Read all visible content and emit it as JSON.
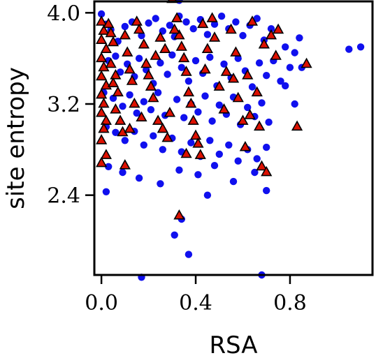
{
  "chart_data": {
    "type": "scatter",
    "xlabel": "RSA",
    "ylabel": "site entropy",
    "xlim": [
      -0.03,
      1.15
    ],
    "ylim": [
      1.7,
      4.1
    ],
    "x_ticks": [
      0.0,
      0.4,
      0.8
    ],
    "x_tick_labels": [
      "0.0",
      "0.4",
      "0.8"
    ],
    "y_ticks": [
      2.4,
      3.2,
      4.0
    ],
    "y_tick_labels": [
      "2.4",
      "3.2",
      "4.0"
    ],
    "grid": false,
    "legend": "none",
    "series": [
      {
        "marker": "circle",
        "color": "#1010ee",
        "points": [
          [
            0.0,
            3.99
          ],
          [
            0.02,
            3.9
          ],
          [
            0.04,
            3.85
          ],
          [
            0.07,
            3.75
          ],
          [
            0.1,
            3.88
          ],
          [
            0.13,
            3.92
          ],
          [
            0.17,
            3.8
          ],
          [
            0.2,
            3.91
          ],
          [
            0.23,
            3.95
          ],
          [
            0.26,
            3.84
          ],
          [
            0.29,
            3.89
          ],
          [
            0.31,
            3.79
          ],
          [
            0.33,
            3.97
          ],
          [
            0.36,
            3.92
          ],
          [
            0.39,
            3.86
          ],
          [
            0.42,
            3.94
          ],
          [
            0.45,
            3.81
          ],
          [
            0.48,
            3.9
          ],
          [
            0.51,
            3.97
          ],
          [
            0.54,
            3.86
          ],
          [
            0.57,
            3.92
          ],
          [
            0.6,
            3.8
          ],
          [
            0.63,
            3.89
          ],
          [
            0.66,
            3.95
          ],
          [
            0.69,
            3.76
          ],
          [
            0.72,
            3.86
          ],
          [
            0.78,
            3.7
          ],
          [
            0.82,
            3.65
          ],
          [
            0.84,
            3.78
          ],
          [
            0.33,
            4.11
          ],
          [
            0.03,
            3.58
          ],
          [
            0.06,
            3.62
          ],
          [
            0.08,
            3.48
          ],
          [
            0.11,
            3.55
          ],
          [
            0.14,
            3.44
          ],
          [
            0.16,
            3.6
          ],
          [
            0.19,
            3.5
          ],
          [
            0.22,
            3.38
          ],
          [
            0.25,
            3.56
          ],
          [
            0.28,
            3.46
          ],
          [
            0.3,
            3.63
          ],
          [
            0.34,
            3.52
          ],
          [
            0.37,
            3.4
          ],
          [
            0.4,
            3.58
          ],
          [
            0.43,
            3.47
          ],
          [
            0.46,
            3.61
          ],
          [
            0.49,
            3.36
          ],
          [
            0.52,
            3.55
          ],
          [
            0.55,
            3.43
          ],
          [
            0.58,
            3.6
          ],
          [
            0.61,
            3.49
          ],
          [
            0.64,
            3.35
          ],
          [
            0.67,
            3.56
          ],
          [
            0.7,
            3.45
          ],
          [
            0.73,
            3.58
          ],
          [
            0.76,
            3.4
          ],
          [
            0.8,
            3.52
          ],
          [
            0.01,
            3.3
          ],
          [
            0.05,
            3.25
          ],
          [
            0.09,
            3.18
          ],
          [
            0.12,
            3.28
          ],
          [
            0.15,
            3.12
          ],
          [
            0.18,
            3.22
          ],
          [
            0.21,
            3.15
          ],
          [
            0.24,
            3.3
          ],
          [
            0.27,
            3.1
          ],
          [
            0.32,
            3.24
          ],
          [
            0.35,
            3.08
          ],
          [
            0.38,
            3.2
          ],
          [
            0.41,
            3.13
          ],
          [
            0.44,
            3.27
          ],
          [
            0.47,
            3.05
          ],
          [
            0.5,
            3.19
          ],
          [
            0.53,
            3.11
          ],
          [
            0.56,
            3.26
          ],
          [
            0.59,
            3.02
          ],
          [
            0.62,
            3.17
          ],
          [
            0.65,
            3.09
          ],
          [
            0.68,
            3.21
          ],
          [
            0.71,
            3.04
          ],
          [
            0.02,
            3.0
          ],
          [
            0.06,
            2.95
          ],
          [
            0.1,
            2.88
          ],
          [
            0.14,
            2.96
          ],
          [
            0.18,
            2.84
          ],
          [
            0.22,
            2.92
          ],
          [
            0.26,
            2.8
          ],
          [
            0.3,
            2.9
          ],
          [
            0.34,
            2.78
          ],
          [
            0.38,
            2.86
          ],
          [
            0.42,
            2.74
          ],
          [
            0.46,
            2.88
          ],
          [
            0.5,
            2.76
          ],
          [
            0.54,
            2.84
          ],
          [
            0.58,
            2.7
          ],
          [
            0.62,
            2.8
          ],
          [
            0.66,
            2.72
          ],
          [
            0.7,
            2.82
          ],
          [
            0.03,
            2.65
          ],
          [
            0.09,
            2.6
          ],
          [
            0.16,
            2.55
          ],
          [
            0.25,
            2.5
          ],
          [
            0.33,
            2.62
          ],
          [
            0.41,
            2.58
          ],
          [
            0.48,
            2.66
          ],
          [
            0.56,
            2.52
          ],
          [
            0.65,
            2.6
          ],
          [
            0.02,
            2.43
          ],
          [
            0.45,
            2.4
          ],
          [
            0.7,
            2.44
          ],
          [
            0.34,
            2.19
          ],
          [
            0.31,
            2.05
          ],
          [
            0.37,
            1.88
          ],
          [
            0.17,
            1.68
          ],
          [
            0.68,
            1.7
          ],
          [
            1.05,
            3.68
          ],
          [
            1.1,
            3.7
          ],
          [
            0.78,
            3.36
          ],
          [
            0.82,
            3.2
          ],
          [
            0.85,
            3.52
          ]
        ]
      },
      {
        "marker": "triangle",
        "color": "#dd1100",
        "points": [
          [
            0.0,
            3.92
          ],
          [
            0.01,
            3.84
          ],
          [
            0.0,
            3.76
          ],
          [
            0.02,
            3.68
          ],
          [
            0.0,
            3.6
          ],
          [
            0.01,
            3.52
          ],
          [
            0.0,
            3.44
          ],
          [
            0.02,
            3.36
          ],
          [
            0.0,
            3.28
          ],
          [
            0.01,
            3.2
          ],
          [
            0.0,
            3.12
          ],
          [
            0.02,
            3.05
          ],
          [
            0.01,
            2.98
          ],
          [
            0.0,
            2.88
          ],
          [
            0.02,
            2.75
          ],
          [
            0.0,
            2.68
          ],
          [
            0.03,
            3.9
          ],
          [
            0.04,
            3.82
          ],
          [
            0.05,
            3.74
          ],
          [
            0.04,
            3.55
          ],
          [
            0.06,
            3.45
          ],
          [
            0.05,
            3.38
          ],
          [
            0.07,
            3.3
          ],
          [
            0.06,
            3.15
          ],
          [
            0.08,
            3.05
          ],
          [
            0.09,
            2.95
          ],
          [
            0.1,
            3.8
          ],
          [
            0.11,
            3.65
          ],
          [
            0.12,
            3.5
          ],
          [
            0.13,
            3.4
          ],
          [
            0.14,
            3.2
          ],
          [
            0.1,
            2.66
          ],
          [
            0.15,
            3.92
          ],
          [
            0.16,
            3.85
          ],
          [
            0.18,
            3.72
          ],
          [
            0.19,
            3.55
          ],
          [
            0.2,
            3.45
          ],
          [
            0.21,
            3.35
          ],
          [
            0.22,
            3.25
          ],
          [
            0.24,
            3.05
          ],
          [
            0.26,
            2.98
          ],
          [
            0.28,
            2.9
          ],
          [
            0.25,
            3.78
          ],
          [
            0.27,
            3.68
          ],
          [
            0.3,
            4.12
          ],
          [
            0.32,
            3.95
          ],
          [
            0.33,
            3.8
          ],
          [
            0.34,
            3.7
          ],
          [
            0.35,
            3.6
          ],
          [
            0.36,
            3.48
          ],
          [
            0.37,
            3.3
          ],
          [
            0.38,
            3.2
          ],
          [
            0.39,
            3.05
          ],
          [
            0.4,
            2.92
          ],
          [
            0.41,
            2.85
          ],
          [
            0.42,
            2.75
          ],
          [
            0.36,
            2.76
          ],
          [
            0.33,
            2.22
          ],
          [
            0.43,
            3.9
          ],
          [
            0.44,
            3.5
          ],
          [
            0.47,
            3.95
          ],
          [
            0.48,
            3.78
          ],
          [
            0.5,
            3.35
          ],
          [
            0.52,
            3.15
          ],
          [
            0.53,
            3.48
          ],
          [
            0.55,
            3.85
          ],
          [
            0.57,
            3.65
          ],
          [
            0.58,
            3.25
          ],
          [
            0.6,
            3.05
          ],
          [
            0.61,
            2.82
          ],
          [
            0.62,
            3.45
          ],
          [
            0.64,
            3.92
          ],
          [
            0.66,
            3.3
          ],
          [
            0.67,
            3.0
          ],
          [
            0.68,
            2.65
          ],
          [
            0.7,
            2.6
          ],
          [
            0.72,
            3.8
          ],
          [
            0.74,
            3.62
          ],
          [
            0.75,
            3.85
          ],
          [
            0.83,
            3.0
          ],
          [
            0.87,
            3.55
          ],
          [
            0.23,
            3.62
          ],
          [
            0.29,
            3.12
          ],
          [
            0.31,
            3.85
          ],
          [
            0.45,
            3.68
          ],
          [
            0.56,
            3.42
          ],
          [
            0.63,
            3.1
          ],
          [
            0.69,
            3.72
          ],
          [
            0.17,
            3.08
          ],
          [
            0.12,
            2.98
          ]
        ]
      }
    ]
  }
}
